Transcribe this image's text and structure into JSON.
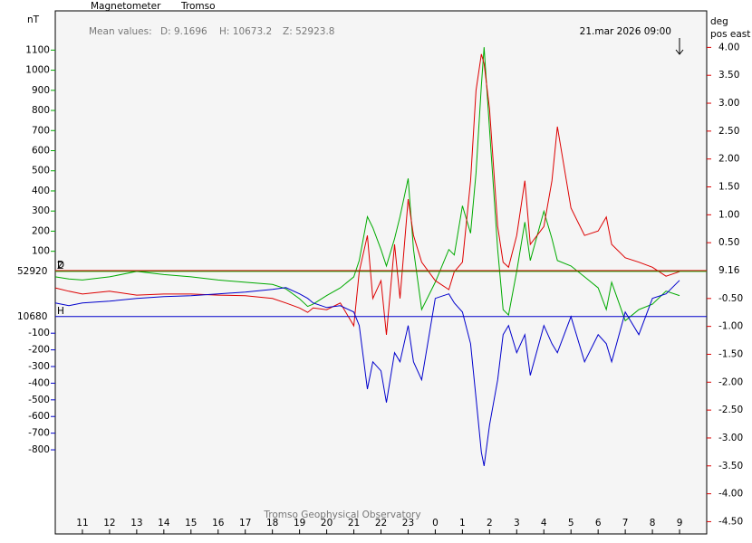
{
  "chart_data": {
    "type": "line",
    "title": "Magnetometer",
    "station": "Tromso",
    "mean_label": "Mean values:",
    "mean_values": [
      "D: 9.1696",
      "H: 10673.2",
      "Z: 52923.8"
    ],
    "timestamp": "21.mar 2026 09:00",
    "y_label": "nT",
    "y2_label": [
      "deg",
      "pos east"
    ],
    "footer": "Tromso Geophysical Observatory",
    "xlim": [
      10,
      34
    ],
    "xticks": [
      11,
      12,
      13,
      14,
      15,
      16,
      17,
      18,
      19,
      20,
      21,
      22,
      23,
      {
        "value": 24,
        "label": "0"
      },
      {
        "value": 25,
        "label": "1"
      },
      {
        "value": 26,
        "label": "2"
      },
      {
        "value": 27,
        "label": "3"
      },
      {
        "value": 28,
        "label": "4"
      },
      {
        "value": 29,
        "label": "5"
      },
      {
        "value": 30,
        "label": "6"
      },
      {
        "value": 31,
        "label": "7"
      },
      {
        "value": 32,
        "label": "8"
      },
      {
        "value": 33,
        "label": "9"
      }
    ],
    "y2lim": [
      -4.72,
      4.655
    ],
    "y2ticks": [
      {
        "value": 4,
        "label": "4.00"
      },
      {
        "value": 3.5,
        "label": "3.50"
      },
      {
        "value": 3,
        "label": "3.00"
      },
      {
        "value": 2.5,
        "label": "2.50"
      },
      {
        "value": 2,
        "label": "2.00"
      },
      {
        "value": 1.5,
        "label": "1.50"
      },
      {
        "value": 1,
        "label": "1.00"
      },
      {
        "value": 0.5,
        "label": "0.50"
      },
      {
        "value": -0.5,
        "label": "-0.50"
      },
      {
        "value": -1,
        "label": "-1.00"
      },
      {
        "value": -1.5,
        "label": "-1.50"
      },
      {
        "value": -2,
        "label": "-2.00"
      },
      {
        "value": -2.5,
        "label": "-2.50"
      },
      {
        "value": -3,
        "label": "-3.00"
      },
      {
        "value": -3.5,
        "label": "-3.50"
      },
      {
        "value": -4,
        "label": "-4.00"
      },
      {
        "value": -4.5,
        "label": "-4.50"
      }
    ],
    "x": [
      10,
      10.5,
      11,
      12,
      13,
      14,
      15,
      16,
      17,
      18,
      18.5,
      19,
      19.3,
      19.5,
      20,
      20.5,
      21,
      21.2,
      21.5,
      21.7,
      22,
      22.2,
      22.5,
      22.7,
      23,
      23.2,
      23.5,
      24,
      24.5,
      24.7,
      25,
      25.3,
      25.5,
      25.7,
      25.8,
      26,
      26.3,
      26.5,
      26.7,
      27,
      27.3,
      27.5,
      28,
      28.3,
      28.5,
      29,
      29.5,
      30,
      30.3,
      30.5,
      31,
      31.5,
      32,
      32.5,
      33
    ],
    "series": [
      {
        "name": "Z",
        "baseline_label": "52920",
        "color": "#00aa00",
        "axis": "y",
        "ylim": [
          -1305,
          1295
        ],
        "yticks": [
          100,
          200,
          300,
          400,
          500,
          600,
          700,
          800,
          900,
          1000,
          1100
        ],
        "values": [
          -27,
          -38,
          -43,
          -27,
          0,
          -16,
          -27,
          -43,
          -54,
          -65,
          -87,
          -136,
          -174,
          -163,
          -120,
          -82,
          -27,
          54,
          272,
          217,
          109,
          27,
          163,
          272,
          462,
          109,
          -190,
          -54,
          109,
          82,
          326,
          190,
          489,
          924,
          1114,
          707,
          109,
          -190,
          -217,
          0,
          245,
          54,
          299,
          163,
          54,
          27,
          -27,
          -82,
          -190,
          -54,
          -245,
          -190,
          -163,
          -98,
          -120
        ]
      },
      {
        "name": "D",
        "baseline_label": "9.16",
        "color": "#dd0000",
        "axis": "y2",
        "values": [
          -0.31,
          -0.37,
          -0.42,
          -0.37,
          -0.44,
          -0.42,
          -0.42,
          -0.44,
          -0.45,
          -0.5,
          -0.58,
          -0.67,
          -0.75,
          -0.67,
          -0.7,
          -0.58,
          -0.99,
          -0.02,
          0.63,
          -0.5,
          -0.18,
          -1.15,
          0.47,
          -0.5,
          1.28,
          0.63,
          0.15,
          -0.18,
          -0.34,
          -0.02,
          0.15,
          1.61,
          3.23,
          3.88,
          3.71,
          2.9,
          0.79,
          0.15,
          0.06,
          0.63,
          1.61,
          0.47,
          0.79,
          1.61,
          2.58,
          1.12,
          0.63,
          0.71,
          0.96,
          0.47,
          0.23,
          0.15,
          0.06,
          -0.1,
          -0.02
        ]
      },
      {
        "name": "H",
        "baseline_label": "10680",
        "color": "#0000cc",
        "axis": "y",
        "ylim": [
          -1305,
          1835
        ],
        "yticks": [
          -100,
          -200,
          -300,
          -400,
          -500,
          -600,
          -700,
          -800
        ],
        "values": [
          82,
          65,
          82,
          92,
          109,
          120,
          125,
          136,
          147,
          163,
          174,
          136,
          109,
          82,
          54,
          65,
          27,
          -54,
          -435,
          -272,
          -326,
          -516,
          -217,
          -272,
          -54,
          -272,
          -380,
          109,
          136,
          82,
          27,
          -163,
          -489,
          -815,
          -897,
          -652,
          -380,
          -109,
          -54,
          -217,
          -109,
          -353,
          -54,
          -163,
          -217,
          0,
          -272,
          -109,
          -163,
          -272,
          27,
          -109,
          109,
          136,
          217
        ]
      }
    ]
  }
}
